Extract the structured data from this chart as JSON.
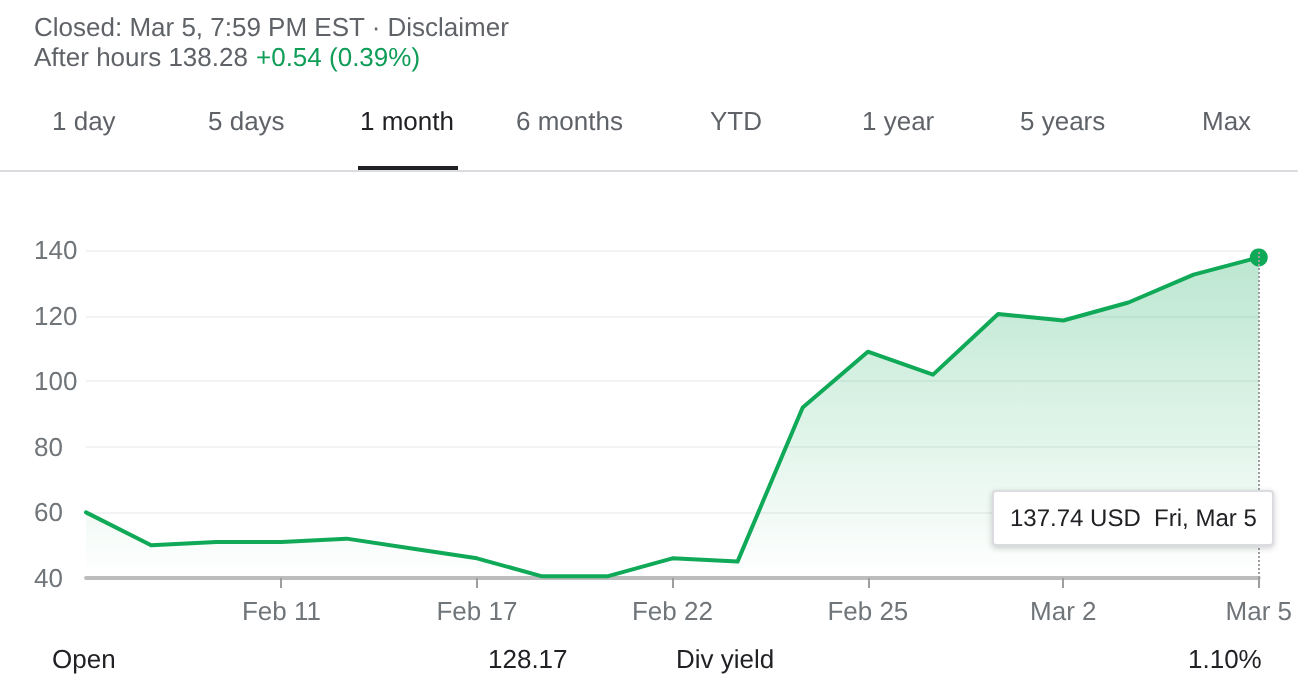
{
  "chart_data": {
    "type": "area",
    "categories": [
      null,
      null,
      null,
      "Feb 11",
      null,
      null,
      "Feb 17",
      null,
      null,
      "Feb 22",
      null,
      null,
      "Feb 25",
      null,
      null,
      "Mar 2",
      null,
      null,
      "Mar 5"
    ],
    "series": [
      {
        "color": "#0fa958",
        "values": [
          60,
          50,
          51,
          51,
          52,
          49,
          46,
          40.5,
          40.5,
          46,
          45,
          92,
          109,
          102,
          120.5,
          118.5,
          124,
          132.5,
          137.74
        ]
      }
    ],
    "ylim": [
      40,
      140
    ],
    "yticks": [
      40,
      60,
      80,
      100,
      120,
      140
    ],
    "grid": "y",
    "marker": "none",
    "line_style": "solid",
    "ref_lines": [
      {
        "axis": "x",
        "value": "Mar 5",
        "line_style": "dotted",
        "color": "#9e9e9e"
      }
    ],
    "annotations": [
      "Closed: Mar 5, 7:59 PM EST · Disclaimer",
      "After hours 138.28",
      "+0.54 (0.39%)",
      "1 day",
      "5 days",
      "1 month",
      "6 months",
      "YTD",
      "1 year",
      "5 years",
      "Max",
      "Open",
      "128.17",
      "Div yield",
      "1.10%",
      "137.74 USD  Fri, Mar 5"
    ]
  }
}
